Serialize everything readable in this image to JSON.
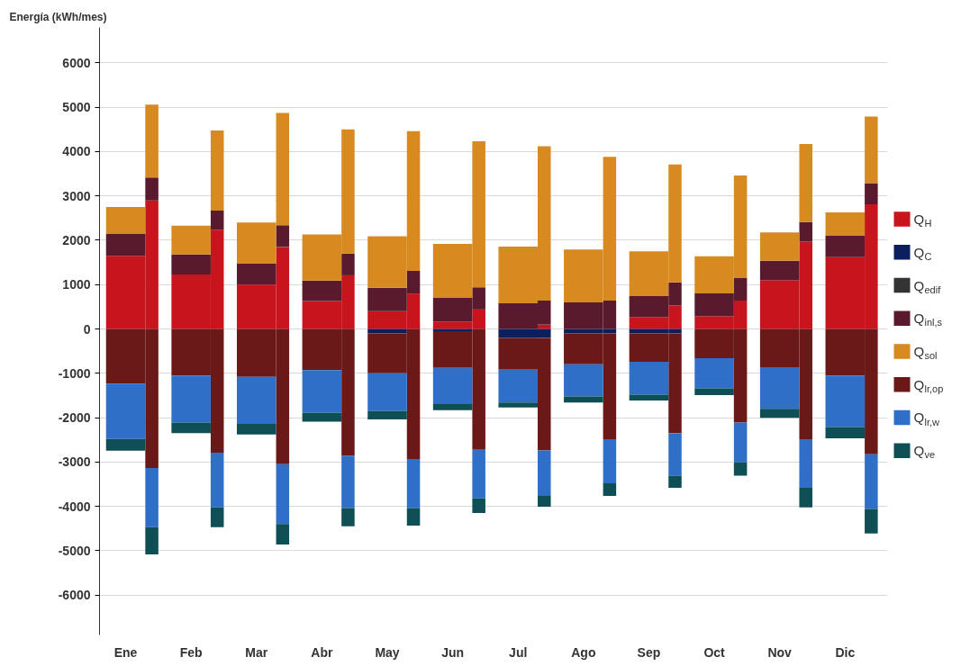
{
  "chart_data": {
    "type": "bar",
    "stacked": true,
    "ylabel": "Energía (kWh/mes)",
    "categories": [
      "Ene",
      null,
      "Feb",
      null,
      "Mar",
      null,
      "Abr",
      null,
      "May",
      null,
      "Jun",
      null,
      "Jul",
      null,
      "Ago",
      null,
      "Sep",
      null,
      "Oct",
      null,
      "Nov",
      null,
      "Dic",
      null
    ],
    "series": [
      {
        "name": "Q$_{H}$",
        "color": "#c8141c",
        "values": [
          1650,
          2900,
          1230,
          2240,
          1000,
          1850,
          630,
          1210,
          400,
          800,
          170,
          440,
          null,
          100,
          null,
          null,
          270,
          530,
          290,
          640,
          1100,
          1970,
          1620,
          2810
        ]
      },
      {
        "name": "Q$_{C}$",
        "color": "#0a1f5c",
        "values": [
          null,
          null,
          null,
          null,
          null,
          null,
          null,
          null,
          -100,
          null,
          -50,
          null,
          -200,
          -200,
          -100,
          -100,
          -100,
          -100,
          null,
          null,
          null,
          null,
          null,
          null
        ]
      },
      {
        "name": "Q$_{edif}$",
        "color": "#333333",
        "values": [
          null,
          null,
          null,
          null,
          null,
          null,
          null,
          null,
          null,
          null,
          null,
          null,
          null,
          null,
          null,
          null,
          null,
          null,
          null,
          null,
          null,
          null,
          null,
          null
        ]
      },
      {
        "name": "Q$_{inl,s}$",
        "color": "#5a1a2e",
        "values": [
          500,
          515,
          450,
          430,
          470,
          490,
          460,
          490,
          530,
          510,
          530,
          500,
          580,
          540,
          600,
          640,
          470,
          520,
          510,
          520,
          440,
          440,
          480,
          480
        ]
      },
      {
        "name": "Q$_{sol}$",
        "color": "#d68a20",
        "values": [
          600,
          1645,
          650,
          1805,
          930,
          2530,
          1040,
          2800,
          1160,
          3150,
          1220,
          3290,
          1280,
          3480,
          1190,
          3240,
          1010,
          2660,
          840,
          2300,
          640,
          1760,
          530,
          1500
        ]
      },
      {
        "name": "Q$_{lr,op}$",
        "color": "#6a1818",
        "values": [
          -1230,
          -3135,
          -1050,
          -2790,
          -1080,
          -3050,
          -930,
          -2860,
          -900,
          -2930,
          -825,
          -2725,
          -720,
          -2540,
          -695,
          -2385,
          -640,
          -2250,
          -660,
          -2110,
          -860,
          -2485,
          -1050,
          -2825
        ]
      },
      {
        "name": "Q$_{lr,w}$",
        "color": "#2f6fc8",
        "values": [
          -1250,
          -1335,
          -1060,
          -1235,
          -1060,
          -1350,
          -960,
          -1180,
          -850,
          -1110,
          -805,
          -1095,
          -740,
          -1010,
          -725,
          -995,
          -740,
          -960,
          -680,
          -900,
          -940,
          -1095,
          -1160,
          -1235
        ]
      },
      {
        "name": "Q$_{ve}$",
        "color": "#0d4f55",
        "values": [
          -265,
          -615,
          -240,
          -445,
          -240,
          -460,
          -200,
          -410,
          -190,
          -395,
          -150,
          -330,
          -110,
          -260,
          -140,
          -285,
          -135,
          -270,
          -150,
          -300,
          -205,
          -445,
          -255,
          -550
        ]
      }
    ],
    "ylim": [
      -6900,
      6800
    ],
    "yticks": [
      -6000,
      -5000,
      -4000,
      -3000,
      -2000,
      -1000,
      0,
      1000,
      2000,
      3000,
      4000,
      5000,
      6000
    ],
    "grid": "y",
    "legend": "right"
  }
}
